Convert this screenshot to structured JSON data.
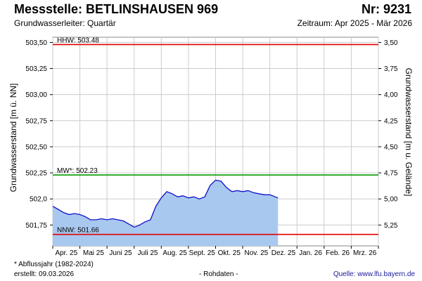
{
  "header": {
    "title": "Messstelle: BETLINSHAUSEN 969",
    "number": "Nr: 9231",
    "aquifer": "Grundwasserleiter: Quartär",
    "period": "Zeitraum: Apr 2025 - Mär 2026"
  },
  "footer": {
    "footnote": "* Abflussjahr (1982-2024)",
    "created": "erstellt:  09.03.2026",
    "raw": "- Rohdaten -",
    "source": "Quelle: www.lfu.bayern.de"
  },
  "colors": {
    "hhw": "#e00000",
    "mw": "#009900",
    "nnw": "#e00000",
    "fill": "#a8c8f0",
    "line": "#1010c8",
    "grid": "#cccccc"
  },
  "chart_data": {
    "type": "area",
    "ylabel": "Grundwasserstand [m ü. NN]",
    "ylabel_right": "Grundwasserstand [m u. Gelände]",
    "ylim": [
      501.55,
      503.55
    ],
    "yticks": [
      501.75,
      502.0,
      502.25,
      502.5,
      502.75,
      503.0,
      503.25,
      503.5
    ],
    "ytick_labels": [
      "501,75",
      "502,0",
      "502,25",
      "502,50",
      "502,75",
      "503,00",
      "503,25",
      "503,50"
    ],
    "yticks_right": [
      3.5,
      3.75,
      4.0,
      4.25,
      4.5,
      4.75,
      5.0,
      5.25
    ],
    "yticks_right_labels": [
      "3,50",
      "3,75",
      "4,00",
      "4,25",
      "4,50",
      "4,75",
      "5,00",
      "5,25"
    ],
    "right_axis_ground_level": 507.0,
    "xlim": [
      0,
      12
    ],
    "months": [
      "Apr. 25",
      "Mai 25",
      "Juni 25",
      "Juli 25",
      "Aug. 25",
      "Sept. 25",
      "Okt. 25",
      "Nov. 25",
      "Dez. 25",
      "Jan. 26",
      "Feb. 26",
      "Mrz. 26"
    ],
    "reference_levels": [
      {
        "key": "hhw",
        "label": "HHW: 503.48",
        "value": 503.48
      },
      {
        "key": "mw",
        "label": "MW*: 502.23",
        "value": 502.23
      },
      {
        "key": "nnw",
        "label": "NNW: 501.66",
        "value": 501.66
      }
    ],
    "series": [
      {
        "x": [
          0,
          0.2,
          0.4,
          0.6,
          0.8,
          1.0,
          1.2,
          1.4,
          1.6,
          1.8,
          2.0,
          2.2,
          2.4,
          2.6,
          2.8,
          3.0,
          3.2,
          3.4,
          3.6,
          3.8,
          4.0,
          4.2,
          4.4,
          4.6,
          4.8,
          5.0,
          5.2,
          5.4,
          5.6,
          5.8,
          6.0,
          6.2,
          6.4,
          6.6,
          6.8,
          7.0,
          7.2,
          7.4,
          7.6,
          7.8,
          8.0,
          8.2,
          8.3
        ],
        "values": [
          501.93,
          501.9,
          501.87,
          501.85,
          501.86,
          501.85,
          501.83,
          501.8,
          501.8,
          501.81,
          501.8,
          501.81,
          501.8,
          501.79,
          501.76,
          501.73,
          501.75,
          501.78,
          501.8,
          501.93,
          502.01,
          502.07,
          502.05,
          502.02,
          502.03,
          502.01,
          502.02,
          502.0,
          502.02,
          502.13,
          502.18,
          502.17,
          502.11,
          502.07,
          502.08,
          502.07,
          502.08,
          502.06,
          502.05,
          502.04,
          502.04,
          502.02,
          502.01
        ]
      }
    ]
  }
}
